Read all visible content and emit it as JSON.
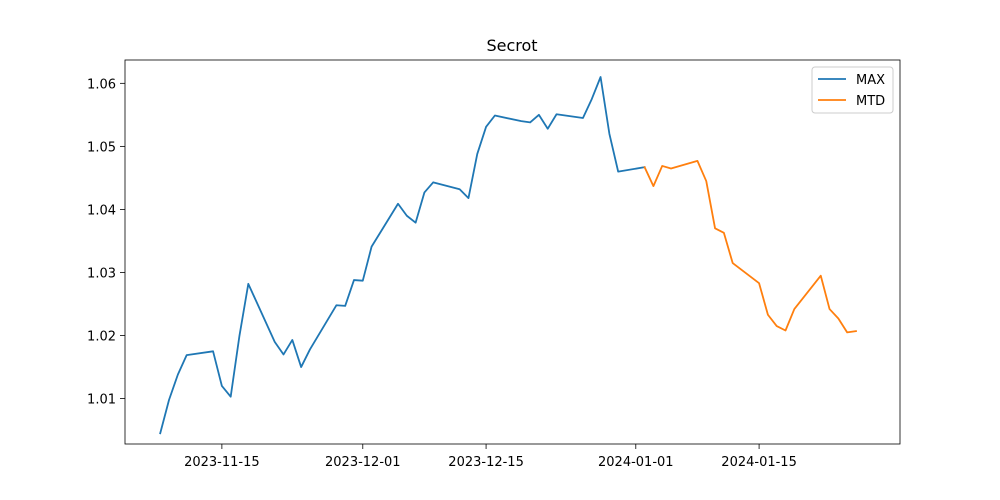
{
  "chart_data": {
    "type": "line",
    "title": "Secrot",
    "xlabel": "",
    "ylabel": "",
    "x_range": [
      "2023-11-04",
      "2024-01-31"
    ],
    "ylim": [
      1.0028,
      1.0637
    ],
    "x_ticks": [
      {
        "date": "2023-11-15",
        "label": "2023-11-15"
      },
      {
        "date": "2023-12-01",
        "label": "2023-12-01"
      },
      {
        "date": "2023-12-15",
        "label": "2023-12-15"
      },
      {
        "date": "2024-01-01",
        "label": "2024-01-01"
      },
      {
        "date": "2024-01-15",
        "label": "2024-01-15"
      }
    ],
    "y_ticks": [
      {
        "value": 1.01,
        "label": "1.01"
      },
      {
        "value": 1.02,
        "label": "1.02"
      },
      {
        "value": 1.03,
        "label": "1.03"
      },
      {
        "value": 1.04,
        "label": "1.04"
      },
      {
        "value": 1.05,
        "label": "1.05"
      },
      {
        "value": 1.06,
        "label": "1.06"
      }
    ],
    "legend": {
      "position": "upper-right"
    },
    "series": [
      {
        "name": "MAX",
        "color": "#1f77b4",
        "points": [
          [
            "2023-11-08",
            1.0045
          ],
          [
            "2023-11-09",
            1.0098
          ],
          [
            "2023-11-10",
            1.0138
          ],
          [
            "2023-11-11",
            1.0169
          ],
          [
            "2023-11-14",
            1.0175
          ],
          [
            "2023-11-15",
            1.012
          ],
          [
            "2023-11-16",
            1.0103
          ],
          [
            "2023-11-17",
            1.02
          ],
          [
            "2023-11-18",
            1.0282
          ],
          [
            "2023-11-21",
            1.019
          ],
          [
            "2023-11-22",
            1.017
          ],
          [
            "2023-11-23",
            1.0193
          ],
          [
            "2023-11-24",
            1.015
          ],
          [
            "2023-11-25",
            1.0178
          ],
          [
            "2023-11-28",
            1.0248
          ],
          [
            "2023-11-29",
            1.0247
          ],
          [
            "2023-11-30",
            1.0288
          ],
          [
            "2023-12-01",
            1.0287
          ],
          [
            "2023-12-02",
            1.0341
          ],
          [
            "2023-12-05",
            1.0409
          ],
          [
            "2023-12-06",
            1.039
          ],
          [
            "2023-12-07",
            1.0379
          ],
          [
            "2023-12-08",
            1.0427
          ],
          [
            "2023-12-09",
            1.0443
          ],
          [
            "2023-12-12",
            1.0432
          ],
          [
            "2023-12-13",
            1.0418
          ],
          [
            "2023-12-14",
            1.0488
          ],
          [
            "2023-12-15",
            1.0531
          ],
          [
            "2023-12-16",
            1.0549
          ],
          [
            "2023-12-19",
            1.054
          ],
          [
            "2023-12-20",
            1.0538
          ],
          [
            "2023-12-21",
            1.055
          ],
          [
            "2023-12-22",
            1.0528
          ],
          [
            "2023-12-23",
            1.0551
          ],
          [
            "2023-12-26",
            1.0545
          ],
          [
            "2023-12-27",
            1.0575
          ],
          [
            "2023-12-28",
            1.061
          ],
          [
            "2023-12-29",
            1.052
          ],
          [
            "2023-12-30",
            1.046
          ],
          [
            "2024-01-02",
            1.0467
          ]
        ]
      },
      {
        "name": "MTD",
        "color": "#ff7f0e",
        "points": [
          [
            "2024-01-02",
            1.0467
          ],
          [
            "2024-01-03",
            1.0437
          ],
          [
            "2024-01-04",
            1.0469
          ],
          [
            "2024-01-05",
            1.0465
          ],
          [
            "2024-01-08",
            1.0477
          ],
          [
            "2024-01-09",
            1.0445
          ],
          [
            "2024-01-10",
            1.037
          ],
          [
            "2024-01-11",
            1.0363
          ],
          [
            "2024-01-12",
            1.0315
          ],
          [
            "2024-01-15",
            1.0283
          ],
          [
            "2024-01-16",
            1.0233
          ],
          [
            "2024-01-17",
            1.0215
          ],
          [
            "2024-01-18",
            1.0208
          ],
          [
            "2024-01-19",
            1.0242
          ],
          [
            "2024-01-22",
            1.0295
          ],
          [
            "2024-01-23",
            1.0242
          ],
          [
            "2024-01-24",
            1.0227
          ],
          [
            "2024-01-25",
            1.0205
          ],
          [
            "2024-01-26",
            1.0207
          ]
        ]
      }
    ]
  }
}
